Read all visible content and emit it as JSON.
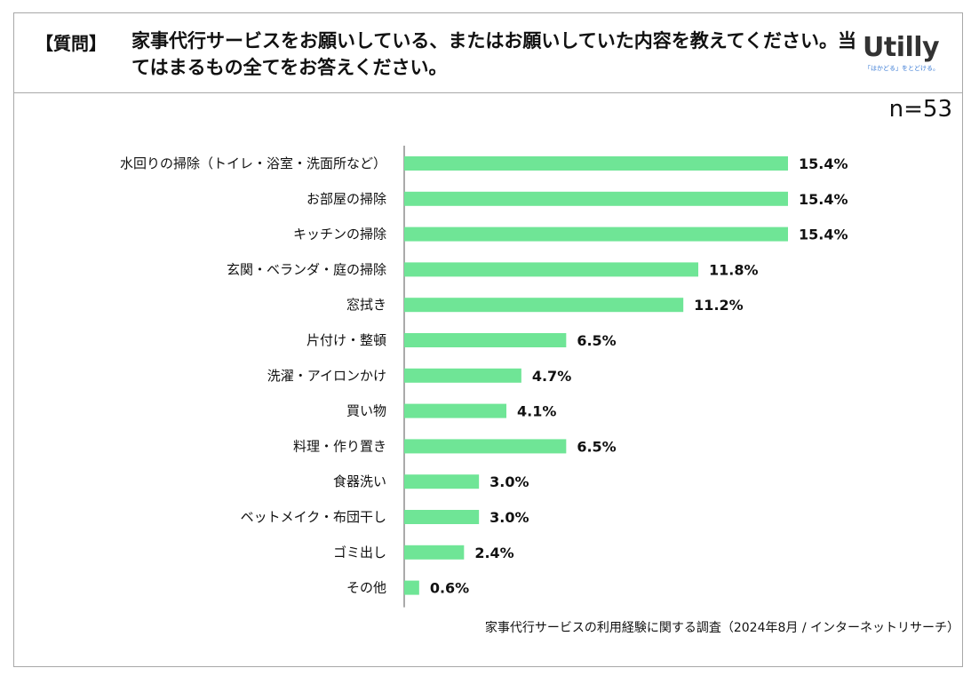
{
  "header": {
    "question_tag": "【質問】",
    "question_text": "家事代行サービスをお願いしている、またはお願いしていた内容を教えてください。当てはまるもの全てをお答えください。"
  },
  "logo": {
    "name": "Utilly",
    "tagline": "「はかどる」をとどける。"
  },
  "sample_size": "n=53",
  "source": "家事代行サービスの利用経験に関する調査（2024年8月 / インターネットリサーチ）",
  "colors": {
    "bar": "#6fe596",
    "axis": "#555555",
    "border": "#a8a8a8"
  },
  "chart_data": {
    "type": "bar",
    "orientation": "horizontal",
    "title": "家事代行サービスをお願いしている、またはお願いしていた内容を教えてください。当てはまるもの全てをお答えください。",
    "categories": [
      "水回りの掃除（トイレ・浴室・洗面所など）",
      "お部屋の掃除",
      "キッチンの掃除",
      "玄関・ベランダ・庭の掃除",
      "窓拭き",
      "片付け・整頓",
      "洗濯・アイロンかけ",
      "買い物",
      "料理・作り置き",
      "食器洗い",
      "ベットメイク・布団干し",
      "ゴミ出し",
      "その他"
    ],
    "values": [
      15.4,
      15.4,
      15.4,
      11.8,
      11.2,
      6.5,
      4.7,
      4.1,
      6.5,
      3.0,
      3.0,
      2.4,
      0.6
    ],
    "value_labels": [
      "15.4%",
      "15.4%",
      "15.4%",
      "11.8%",
      "11.2%",
      "6.5%",
      "4.7%",
      "4.1%",
      "6.5%",
      "3.0%",
      "3.0%",
      "2.4%",
      "0.6%"
    ],
    "xlim": [
      0,
      15.4
    ],
    "unit": "%",
    "xlabel": "",
    "ylabel": ""
  }
}
